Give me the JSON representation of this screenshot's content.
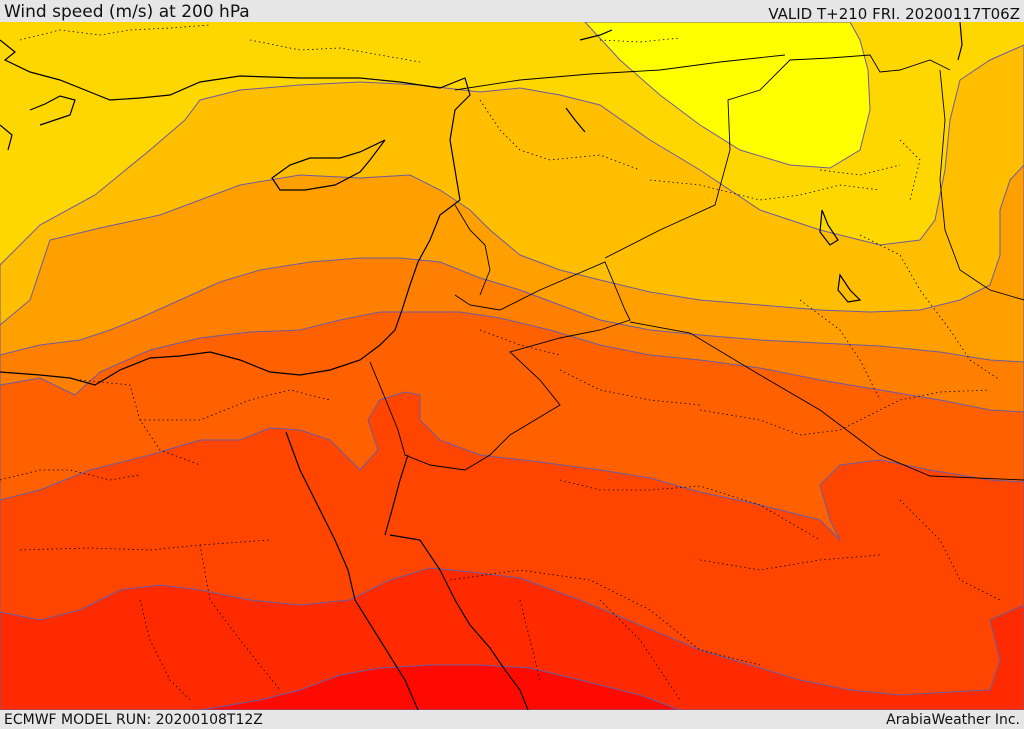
{
  "header": {
    "title": "Wind speed (m/s) at 200 hPa",
    "valid": "VALID T+210 FRI. 20200117T06Z"
  },
  "footer": {
    "model_run": "ECMWF MODEL RUN: 20200108T12Z",
    "credit": "ArabiaWeather Inc."
  },
  "map": {
    "field": "wind speed",
    "level": "200 hPa",
    "colors": {
      "band_lightest": "#ffff00",
      "band_1": "#ffd700",
      "band_2": "#ffbf00",
      "band_3": "#ffa000",
      "band_4": "#ff8000",
      "band_5": "#ff6000",
      "band_6": "#ff4500",
      "band_7": "#ff2a00",
      "band_strongest": "#ff0a00",
      "contour_line": "#6e5aa0",
      "coastline": "#000000",
      "border": "#000000"
    }
  }
}
